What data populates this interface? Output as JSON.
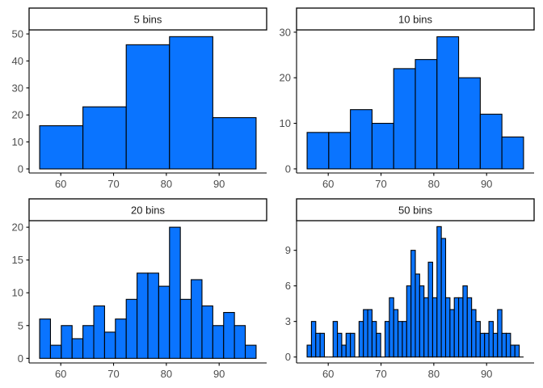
{
  "colors": {
    "bar_fill": "#0a74ff",
    "bar_stroke": "#000000",
    "axis": "#000000",
    "tick_text": "#4d4d4d",
    "strip_fill": "#ffffff"
  },
  "chart_data": [
    {
      "type": "bar",
      "strip_title": "5 bins",
      "bin_edges": [
        56,
        64.2,
        72.4,
        80.6,
        88.8,
        97
      ],
      "values": [
        16,
        23,
        46,
        49,
        19
      ],
      "xlim": [
        54,
        99
      ],
      "ylim": [
        -1.5,
        51.5
      ],
      "x_ticks": [
        "60",
        "70",
        "80",
        "90"
      ],
      "y_ticks": [
        "0",
        "10",
        "20",
        "30",
        "40",
        "50"
      ],
      "grid": false
    },
    {
      "type": "bar",
      "strip_title": "10 bins",
      "bin_edges": [
        56,
        60.1,
        64.2,
        68.3,
        72.4,
        76.5,
        80.6,
        84.7,
        88.8,
        92.9,
        97
      ],
      "values": [
        8,
        8,
        13,
        10,
        22,
        24,
        29,
        20,
        12,
        7
      ],
      "xlim": [
        54,
        99
      ],
      "ylim": [
        -0.9,
        30.5
      ],
      "x_ticks": [
        "60",
        "70",
        "80",
        "90"
      ],
      "y_ticks": [
        "0",
        "10",
        "20",
        "30"
      ],
      "grid": false
    },
    {
      "type": "bar",
      "strip_title": "20 bins",
      "bin_edges": [
        56,
        58.05,
        60.1,
        62.15,
        64.2,
        66.25,
        68.3,
        70.35,
        72.4,
        74.45,
        76.5,
        78.55,
        80.6,
        82.65,
        84.7,
        86.75,
        88.8,
        90.85,
        92.9,
        94.95,
        97
      ],
      "values": [
        6,
        2,
        5,
        3,
        5,
        8,
        4,
        6,
        9,
        13,
        13,
        11,
        20,
        9,
        12,
        8,
        5,
        7,
        5,
        2
      ],
      "xlim": [
        54,
        99
      ],
      "ylim": [
        -0.7,
        21
      ],
      "x_ticks": [
        "60",
        "70",
        "80",
        "90"
      ],
      "y_ticks": [
        "0",
        "5",
        "10",
        "15",
        "20"
      ],
      "grid": false
    },
    {
      "type": "bar",
      "strip_title": "50 bins",
      "bin_edges": [
        56,
        56.82,
        57.64,
        58.46,
        59.28,
        60.1,
        60.92,
        61.74,
        62.56,
        63.38,
        64.2,
        65.02,
        65.84,
        66.66,
        67.48,
        68.3,
        69.12,
        69.94,
        70.76,
        71.58,
        72.4,
        73.22,
        74.04,
        74.86,
        75.68,
        76.5,
        77.32,
        78.14,
        78.96,
        79.78,
        80.6,
        81.42,
        82.24,
        83.06,
        83.88,
        84.7,
        85.52,
        86.34,
        87.16,
        87.98,
        88.8,
        89.62,
        90.44,
        91.26,
        92.08,
        92.9,
        93.72,
        94.54,
        95.36,
        96.18,
        97
      ],
      "values": [
        1,
        3,
        2,
        2,
        0,
        0,
        3,
        2,
        1,
        2,
        2,
        0,
        3,
        4,
        4,
        3,
        2,
        0,
        3,
        5,
        4,
        3,
        3,
        6,
        9,
        7,
        6,
        5,
        8,
        5,
        11,
        10,
        5,
        4,
        5,
        5,
        6,
        5,
        4,
        3,
        2,
        2,
        3,
        2,
        4,
        2,
        2,
        1,
        1,
        0
      ],
      "xlim": [
        54,
        99
      ],
      "ylim": [
        -0.5,
        11.5
      ],
      "x_ticks": [
        "60",
        "70",
        "80",
        "90"
      ],
      "y_ticks": [
        "0",
        "3",
        "6",
        "9"
      ],
      "grid": false
    }
  ]
}
